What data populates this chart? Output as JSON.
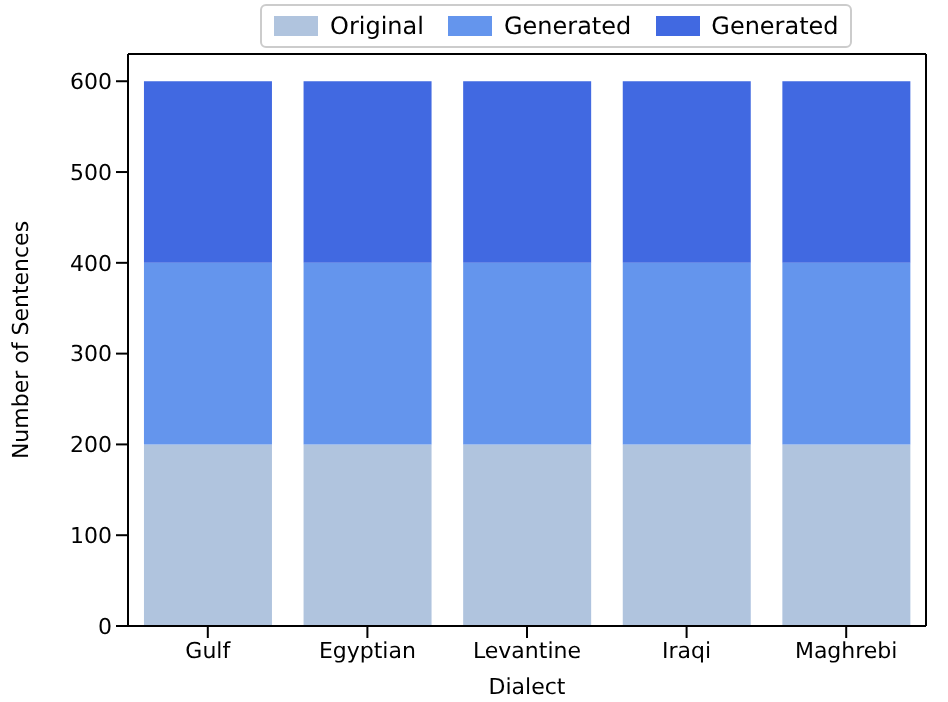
{
  "chart_data": {
    "type": "bar",
    "stacked": true,
    "xlabel": "Dialect",
    "ylabel": "Number of Sentences",
    "categories": [
      "Gulf",
      "Egyptian",
      "Levantine",
      "Iraqi",
      "Maghrebi"
    ],
    "series": [
      {
        "name": "Original",
        "color": "#b0c4de",
        "values": [
          200,
          200,
          200,
          200,
          200
        ]
      },
      {
        "name": "Generated",
        "color": "#6495ed",
        "values": [
          200,
          200,
          200,
          200,
          200
        ]
      },
      {
        "name": "Generated",
        "color": "#4169e1",
        "values": [
          200,
          200,
          200,
          200,
          200
        ]
      }
    ],
    "ylim": [
      0,
      630
    ],
    "yticks": [
      0,
      100,
      200,
      300,
      400,
      500,
      600
    ],
    "grid": false,
    "legend": "top"
  }
}
